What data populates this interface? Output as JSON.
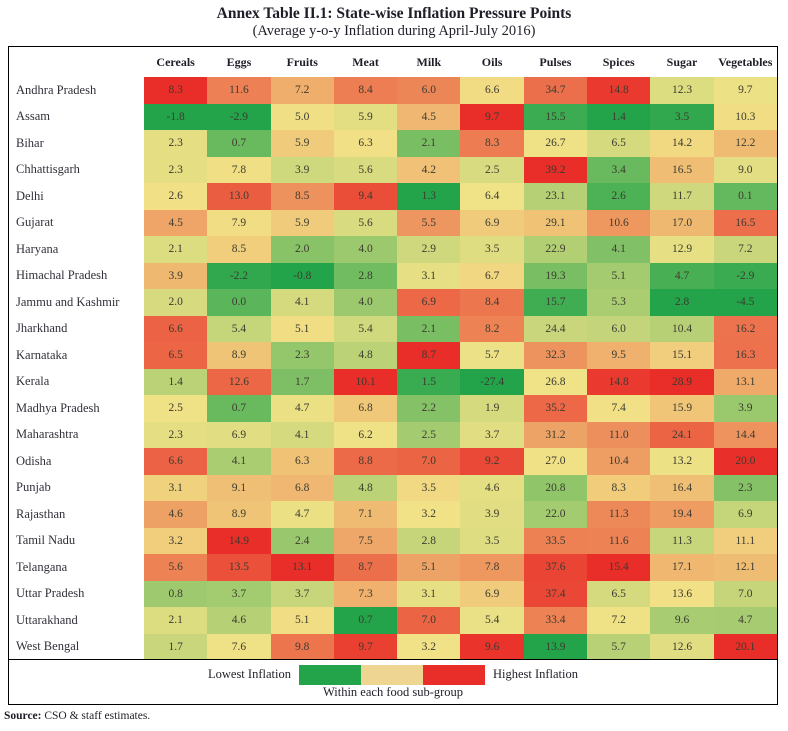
{
  "title": "Annex Table II.1: State-wise Inflation Pressure Points",
  "subtitle": "(Average y-o-y Inflation during April-July 2016)",
  "chart_data": {
    "type": "heatmap",
    "title": "Annex Table II.1: State-wise Inflation Pressure Points",
    "subtitle": "(Average y-o-y Inflation during April-July 2016)",
    "columns": [
      "Cereals",
      "Eggs",
      "Fruits",
      "Meat",
      "Milk",
      "Oils",
      "Pulses",
      "Spices",
      "Sugar",
      "Vegetables"
    ],
    "rows": [
      "Andhra Pradesh",
      "Assam",
      "Bihar",
      "Chhattisgarh",
      "Delhi",
      "Gujarat",
      "Haryana",
      "Himachal Pradesh",
      "Jammu and Kashmir",
      "Jharkhand",
      "Karnataka",
      "Kerala",
      "Madhya Pradesh",
      "Maharashtra",
      "Odisha",
      "Punjab",
      "Rajasthan",
      "Tamil Nadu",
      "Telangana",
      "Uttar Pradesh",
      "Uttarakhand",
      "West Bengal"
    ],
    "values": [
      [
        8.3,
        11.6,
        7.2,
        8.4,
        6.0,
        6.6,
        34.7,
        14.8,
        12.3,
        9.7
      ],
      [
        -1.8,
        -2.9,
        5.0,
        5.9,
        4.5,
        9.7,
        15.5,
        1.4,
        3.5,
        10.3
      ],
      [
        2.3,
        0.7,
        5.9,
        6.3,
        2.1,
        8.3,
        26.7,
        6.5,
        14.2,
        12.2
      ],
      [
        2.3,
        7.8,
        3.9,
        5.6,
        4.2,
        2.5,
        39.2,
        3.4,
        16.5,
        9.0
      ],
      [
        2.6,
        13.0,
        8.5,
        9.4,
        1.3,
        6.4,
        23.1,
        2.6,
        11.7,
        0.1
      ],
      [
        4.5,
        7.9,
        5.9,
        5.6,
        5.5,
        6.9,
        29.1,
        10.6,
        17.0,
        16.5
      ],
      [
        2.1,
        8.5,
        2.0,
        4.0,
        2.9,
        3.5,
        22.9,
        4.1,
        12.9,
        7.2
      ],
      [
        3.9,
        -2.2,
        -0.8,
        2.8,
        3.1,
        6.7,
        19.3,
        5.1,
        4.7,
        -2.9
      ],
      [
        2.0,
        0.0,
        4.1,
        4.0,
        6.9,
        8.4,
        15.7,
        5.3,
        2.8,
        -4.5
      ],
      [
        6.6,
        5.4,
        5.1,
        5.4,
        2.1,
        8.2,
        24.4,
        6.0,
        10.4,
        16.2
      ],
      [
        6.5,
        8.9,
        2.3,
        4.8,
        8.7,
        5.7,
        32.3,
        9.5,
        15.1,
        16.3
      ],
      [
        1.4,
        12.6,
        1.7,
        10.1,
        1.5,
        -27.4,
        26.8,
        14.8,
        28.9,
        13.1
      ],
      [
        2.5,
        0.7,
        4.7,
        6.8,
        2.2,
        1.9,
        35.2,
        7.4,
        15.9,
        3.9
      ],
      [
        2.3,
        6.9,
        4.1,
        6.2,
        2.5,
        3.7,
        31.2,
        11.0,
        24.1,
        14.4
      ],
      [
        6.6,
        4.1,
        6.3,
        8.8,
        7.0,
        9.2,
        27.0,
        10.4,
        13.2,
        20.0
      ],
      [
        3.1,
        9.1,
        6.8,
        4.8,
        3.5,
        4.6,
        20.8,
        8.3,
        16.4,
        2.3
      ],
      [
        4.6,
        8.9,
        4.7,
        7.1,
        3.2,
        3.9,
        22.0,
        11.3,
        19.4,
        6.9
      ],
      [
        3.2,
        14.9,
        2.4,
        7.5,
        2.8,
        3.5,
        33.5,
        11.6,
        11.3,
        11.1
      ],
      [
        5.6,
        13.5,
        13.1,
        8.7,
        5.1,
        7.8,
        37.6,
        15.4,
        17.1,
        12.1
      ],
      [
        0.8,
        3.7,
        3.7,
        7.3,
        3.1,
        6.9,
        37.4,
        6.5,
        13.6,
        7.0
      ],
      [
        2.1,
        4.6,
        5.1,
        0.7,
        7.0,
        5.4,
        33.4,
        7.2,
        9.6,
        4.7
      ],
      [
        1.7,
        7.6,
        9.8,
        9.7,
        3.2,
        9.6,
        13.9,
        5.7,
        12.6,
        20.1
      ]
    ],
    "color_scale": {
      "min_color": "#23a44a",
      "mid_color": "#f1e287",
      "max_color": "#e92d28",
      "scaling": "per-column, green at column minimum, yellow at column median, red at column maximum",
      "value_decimals": 1
    },
    "legend_position": "bottom"
  },
  "legend": {
    "low_label": "Lowest Inflation",
    "high_label": "Highest Inflation",
    "caption": "Within each food sub-group",
    "colors": [
      "#23a44a",
      "#eed592",
      "#e92d28"
    ]
  },
  "source": {
    "label": "Source:",
    "text": " CSO & staff estimates."
  }
}
